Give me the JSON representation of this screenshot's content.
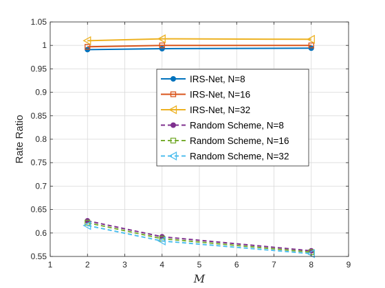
{
  "chart_data": {
    "type": "line",
    "title": "",
    "xlabel": "M",
    "ylabel": "Rate Ratio",
    "xlim": [
      1,
      9
    ],
    "ylim": [
      0.55,
      1.05
    ],
    "xticks": [
      "1",
      "2",
      "3",
      "4",
      "5",
      "6",
      "7",
      "8",
      "9"
    ],
    "yticks": [
      "0.55",
      "0.6",
      "0.65",
      "0.7",
      "0.75",
      "0.8",
      "0.85",
      "0.9",
      "0.95",
      "1",
      "1.05"
    ],
    "grid": true,
    "legend_position": "center-right",
    "x": [
      2,
      4,
      8
    ],
    "series": [
      {
        "name": "IRS-Net, N=8",
        "values": [
          0.991,
          0.993,
          0.994
        ],
        "color": "#0072BD",
        "style": "solid",
        "marker": "circle"
      },
      {
        "name": "IRS-Net, N=16",
        "values": [
          0.997,
          1.0,
          1.0
        ],
        "color": "#D95319",
        "style": "solid",
        "marker": "square"
      },
      {
        "name": "IRS-Net, N=32",
        "values": [
          1.01,
          1.014,
          1.013
        ],
        "color": "#EDB120",
        "style": "solid",
        "marker": "triangle-left"
      },
      {
        "name": "Random Scheme, N=8",
        "values": [
          0.626,
          0.592,
          0.562
        ],
        "color": "#7E2F8E",
        "style": "dashed",
        "marker": "circle"
      },
      {
        "name": "Random Scheme, N=16",
        "values": [
          0.622,
          0.588,
          0.559
        ],
        "color": "#77AC30",
        "style": "dashed",
        "marker": "square"
      },
      {
        "name": "Random Scheme, N=32",
        "values": [
          0.616,
          0.583,
          0.556
        ],
        "color": "#4DBEEE",
        "style": "dashed",
        "marker": "triangle-left"
      }
    ]
  }
}
